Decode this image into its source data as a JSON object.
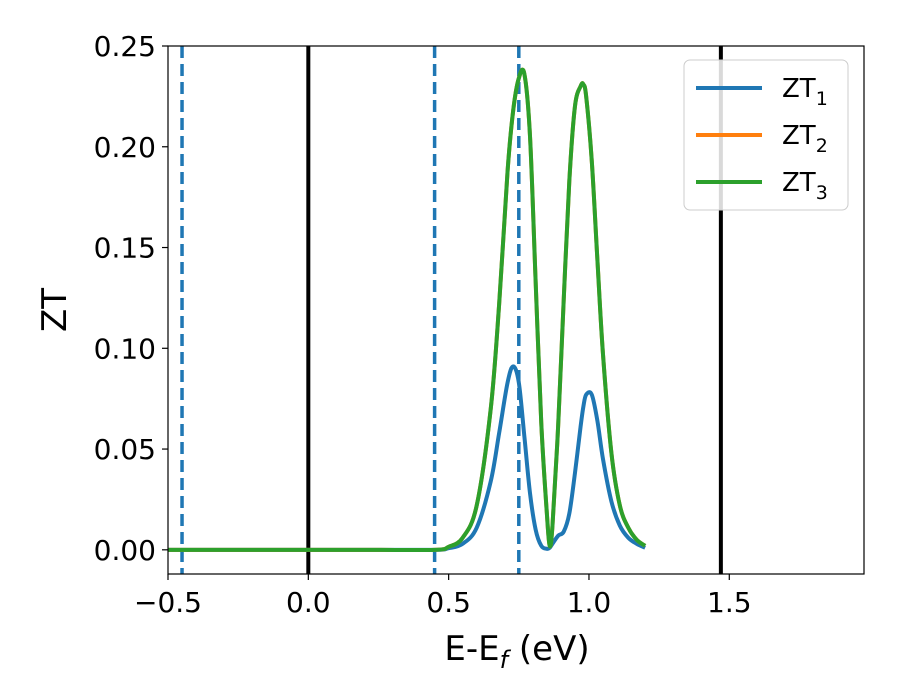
{
  "chart_data": {
    "type": "line",
    "xlabel": "E-E_f (eV)",
    "xlabel_parts": {
      "main": "E-E",
      "sub": "f",
      "unit": " (eV)"
    },
    "ylabel": "ZT",
    "xlim": [
      -0.5,
      1.98
    ],
    "ylim": [
      -0.012,
      0.25
    ],
    "xticks": [
      -0.5,
      0.0,
      0.5,
      1.0,
      1.5
    ],
    "xtick_labels": [
      "−0.5",
      "0.0",
      "0.5",
      "1.0",
      "1.5"
    ],
    "yticks": [
      0.0,
      0.05,
      0.1,
      0.15,
      0.2,
      0.25
    ],
    "ytick_labels": [
      "0.00",
      "0.05",
      "0.10",
      "0.15",
      "0.20",
      "0.25"
    ],
    "grid": false,
    "legend_position": "top-right",
    "vertical_lines": [
      {
        "x": -0.45,
        "style": "dashed",
        "color": "#1f77b4"
      },
      {
        "x": 0.0,
        "style": "solid",
        "color": "#000000"
      },
      {
        "x": 0.45,
        "style": "dashed",
        "color": "#1f77b4"
      },
      {
        "x": 0.75,
        "style": "dashed",
        "color": "#1f77b4"
      },
      {
        "x": 1.47,
        "style": "solid",
        "color": "#000000"
      }
    ],
    "x": [
      -0.5,
      -0.2,
      0.2,
      0.45,
      0.5,
      0.55,
      0.6,
      0.65,
      0.68,
      0.71,
      0.73,
      0.75,
      0.77,
      0.79,
      0.81,
      0.83,
      0.85,
      0.86,
      0.87,
      0.89,
      0.91,
      0.93,
      0.95,
      0.97,
      0.98,
      0.99,
      1.01,
      1.03,
      1.05,
      1.08,
      1.11,
      1.14,
      1.17,
      1.2
    ],
    "series": [
      {
        "name": "ZT_1",
        "label_main": "ZT",
        "label_sub": "1",
        "color": "#1f77b4",
        "values": [
          0,
          0,
          0,
          0,
          0.0008,
          0.003,
          0.011,
          0.034,
          0.058,
          0.083,
          0.091,
          0.083,
          0.056,
          0.028,
          0.01,
          0.002,
          0.0005,
          0.001,
          0.003,
          0.007,
          0.009,
          0.018,
          0.038,
          0.061,
          0.071,
          0.077,
          0.077,
          0.064,
          0.045,
          0.024,
          0.012,
          0.006,
          0.003,
          0.001
        ]
      },
      {
        "name": "ZT_2",
        "label_main": "ZT",
        "label_sub": "2",
        "color": "#ff7f0e",
        "values": [
          0,
          0,
          0,
          0,
          0.0015,
          0.006,
          0.022,
          0.07,
          0.122,
          0.188,
          0.218,
          0.234,
          0.236,
          0.205,
          0.133,
          0.063,
          0.018,
          0.002,
          0.012,
          0.061,
          0.124,
          0.183,
          0.22,
          0.23,
          0.231,
          0.225,
          0.193,
          0.144,
          0.097,
          0.048,
          0.022,
          0.011,
          0.005,
          0.002
        ]
      },
      {
        "name": "ZT_3",
        "label_main": "ZT",
        "label_sub": "3",
        "color": "#2ca02c",
        "values": [
          0,
          0,
          0,
          0,
          0.0015,
          0.006,
          0.022,
          0.07,
          0.122,
          0.188,
          0.218,
          0.234,
          0.236,
          0.205,
          0.133,
          0.063,
          0.018,
          0.002,
          0.012,
          0.061,
          0.124,
          0.183,
          0.22,
          0.23,
          0.231,
          0.225,
          0.193,
          0.144,
          0.097,
          0.048,
          0.022,
          0.011,
          0.005,
          0.002
        ]
      }
    ]
  }
}
